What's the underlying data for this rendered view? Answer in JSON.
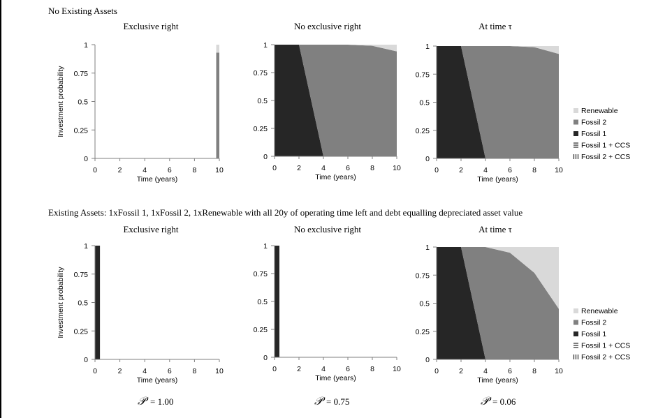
{
  "section_titles": {
    "top": "No Existing Assets",
    "bottom": "Existing Assets: 1xFossil 1, 1xFossil 2, 1xRenewable with all 20y of operating time left and debt equalling depreciated asset value"
  },
  "legend": {
    "items": [
      {
        "label": "Renewable",
        "color": "#d9d9d9",
        "pattern": "solid"
      },
      {
        "label": "Fossil 2",
        "color": "#808080",
        "pattern": "solid"
      },
      {
        "label": "Fossil 1",
        "color": "#262626",
        "pattern": "solid"
      },
      {
        "label": "Fossil 1 + CCS",
        "color": "#262626",
        "pattern": "hlines"
      },
      {
        "label": "Fossil 2 + CCS",
        "color": "#262626",
        "pattern": "vlines"
      }
    ]
  },
  "p_values": [
    "= 1.00",
    "= 0.75",
    "= 0.06"
  ],
  "p_symbol": "𝒫",
  "chart_data": [
    {
      "id": "top-exclusive",
      "type": "area",
      "title": "Exclusive right",
      "xlabel": "Time (years)",
      "ylabel": "Investment probability",
      "xlim": [
        0,
        10
      ],
      "ylim": [
        0,
        1
      ],
      "xticks": [
        "0",
        "2",
        "4",
        "6",
        "8",
        "10"
      ],
      "yticks": [
        "0",
        "0.25",
        "0.5",
        "0.75",
        "1"
      ],
      "bars": [
        {
          "x0": 9.75,
          "x1": 10,
          "stack": [
            {
              "series": "Fossil 2",
              "value": 0.93
            },
            {
              "series": "Renewable",
              "value": 0.07
            }
          ]
        }
      ]
    },
    {
      "id": "top-noexclusive",
      "type": "area",
      "title": "No exclusive right",
      "xlabel": "Time (years)",
      "ylabel": "",
      "xlim": [
        0,
        10
      ],
      "ylim": [
        0,
        1
      ],
      "xticks": [
        "0",
        "2",
        "4",
        "6",
        "8",
        "10"
      ],
      "yticks": [
        "0",
        "0.25",
        "0.5",
        "0.75",
        "1"
      ],
      "x": [
        0,
        2,
        4,
        6,
        8,
        10
      ],
      "series": [
        {
          "name": "Fossil 1",
          "values": [
            1,
            1,
            0,
            0,
            0,
            0
          ]
        },
        {
          "name": "Fossil 2",
          "values": [
            0,
            0,
            1,
            1,
            0.99,
            0.94
          ]
        },
        {
          "name": "Renewable",
          "values": [
            0,
            0,
            0,
            0,
            0.01,
            0.06
          ]
        }
      ]
    },
    {
      "id": "top-tau",
      "type": "area",
      "title": "At time τ",
      "xlabel": "Time (years)",
      "ylabel": "",
      "xlim": [
        0,
        10
      ],
      "ylim": [
        0,
        1
      ],
      "xticks": [
        "0",
        "2",
        "4",
        "6",
        "8",
        "10"
      ],
      "yticks": [
        "0",
        "0.25",
        "0.5",
        "0.75",
        "1"
      ],
      "x": [
        0,
        2,
        4,
        6,
        8,
        10
      ],
      "series": [
        {
          "name": "Fossil 1",
          "values": [
            1,
            1,
            0,
            0,
            0,
            0
          ]
        },
        {
          "name": "Fossil 2",
          "values": [
            0,
            0,
            1,
            1,
            0.99,
            0.93
          ]
        },
        {
          "name": "Renewable",
          "values": [
            0,
            0,
            0,
            0,
            0.01,
            0.07
          ]
        }
      ]
    },
    {
      "id": "bottom-exclusive",
      "type": "area",
      "title": "Exclusive right",
      "xlabel": "Time (years)",
      "ylabel": "Investment probability",
      "xlim": [
        0,
        10
      ],
      "ylim": [
        0,
        1
      ],
      "xticks": [
        "0",
        "2",
        "4",
        "6",
        "8",
        "10"
      ],
      "yticks": [
        "0",
        "0.25",
        "0.5",
        "0.75",
        "1"
      ],
      "bars": [
        {
          "x0": 0,
          "x1": 0.4,
          "stack": [
            {
              "series": "Fossil 1",
              "value": 1
            }
          ]
        }
      ]
    },
    {
      "id": "bottom-noexclusive",
      "type": "area",
      "title": "No exclusive right",
      "xlabel": "Time (years)",
      "ylabel": "",
      "xlim": [
        0,
        10
      ],
      "ylim": [
        0,
        1
      ],
      "xticks": [
        "0",
        "2",
        "4",
        "6",
        "8",
        "10"
      ],
      "yticks": [
        "0",
        "0.25",
        "0.5",
        "0.75",
        "1"
      ],
      "bars": [
        {
          "x0": 0,
          "x1": 0.4,
          "stack": [
            {
              "series": "Fossil 1",
              "value": 1
            }
          ]
        }
      ]
    },
    {
      "id": "bottom-tau",
      "type": "area",
      "title": "At time τ",
      "xlabel": "Time (years)",
      "ylabel": "",
      "xlim": [
        0,
        10
      ],
      "ylim": [
        0,
        1
      ],
      "xticks": [
        "0",
        "2",
        "4",
        "6",
        "8",
        "10"
      ],
      "yticks": [
        "0",
        "0.25",
        "0.5",
        "0.75",
        "1"
      ],
      "x": [
        0,
        2,
        4,
        6,
        8,
        10
      ],
      "series": [
        {
          "name": "Fossil 1",
          "values": [
            1,
            1,
            0,
            0,
            0,
            0
          ]
        },
        {
          "name": "Fossil 2",
          "values": [
            0,
            0,
            1,
            0.95,
            0.77,
            0.45
          ]
        },
        {
          "name": "Renewable",
          "values": [
            0,
            0,
            0,
            0.05,
            0.23,
            0.55
          ]
        }
      ]
    }
  ]
}
